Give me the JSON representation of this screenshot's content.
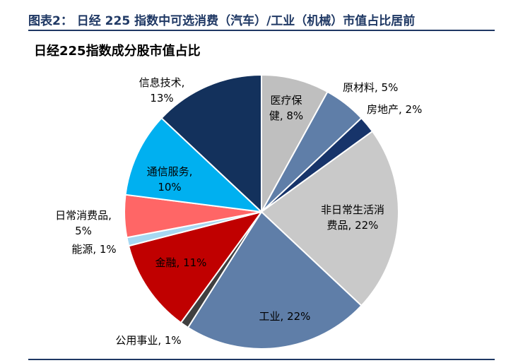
{
  "figure": {
    "title": "图表2： 日经 225 指数中可选消费（汽车）/工业（机械）市值占比居前"
  },
  "chart_data": {
    "type": "pie",
    "title": "日经225指数成分股市值占比",
    "start_angle_deg": 0,
    "direction": "clockwise",
    "slices": [
      {
        "label": "医疗保健",
        "display": [
          "医疗保",
          "健, 8%"
        ],
        "value": 8,
        "color": "#bfbfbf",
        "text_color": "#000000"
      },
      {
        "label": "原材料",
        "display": [
          "原材料, 5%"
        ],
        "value": 5,
        "color": "#5f7ea8",
        "text_color": "#000000"
      },
      {
        "label": "房地产",
        "display": [
          "房地产, 2%"
        ],
        "value": 2,
        "color": "#17346a",
        "text_color": "#000000"
      },
      {
        "label": "非日常生活消费品",
        "display": [
          "非日常生活消",
          "费品, 22%"
        ],
        "value": 22,
        "color": "#c9c9c9",
        "text_color": "#000000"
      },
      {
        "label": "工业",
        "display": [
          "工业, 22%"
        ],
        "value": 22,
        "color": "#5f7ea8",
        "text_color": "#000000"
      },
      {
        "label": "公用事业",
        "display": [
          "公用事业, 1%"
        ],
        "value": 1,
        "color": "#404040",
        "text_color": "#000000"
      },
      {
        "label": "金融",
        "display": [
          "金融, 11%"
        ],
        "value": 11,
        "color": "#c00000",
        "text_color": "#000000"
      },
      {
        "label": "能源",
        "display": [
          "能源, 1%"
        ],
        "value": 1,
        "color": "#a6d8f2",
        "text_color": "#000000"
      },
      {
        "label": "日常消费品",
        "display": [
          "日常消费品,",
          "5%"
        ],
        "value": 5,
        "color": "#ff6666",
        "text_color": "#000000"
      },
      {
        "label": "通信服务",
        "display": [
          "通信服务,",
          "10%"
        ],
        "value": 10,
        "color": "#00b0f0",
        "text_color": "#000000"
      },
      {
        "label": "信息技术",
        "display": [
          "信息技术,",
          "13%"
        ],
        "value": 13,
        "color": "#13315c",
        "text_color": "#000000"
      }
    ]
  }
}
